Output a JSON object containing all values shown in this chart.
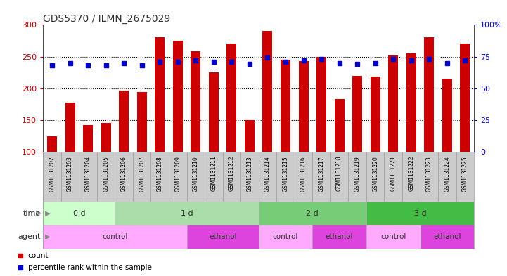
{
  "title": "GDS5370 / ILMN_2675029",
  "samples": [
    "GSM1131202",
    "GSM1131203",
    "GSM1131204",
    "GSM1131205",
    "GSM1131206",
    "GSM1131207",
    "GSM1131208",
    "GSM1131209",
    "GSM1131210",
    "GSM1131211",
    "GSM1131212",
    "GSM1131213",
    "GSM1131214",
    "GSM1131215",
    "GSM1131216",
    "GSM1131217",
    "GSM1131218",
    "GSM1131219",
    "GSM1131220",
    "GSM1131221",
    "GSM1131222",
    "GSM1131223",
    "GSM1131224",
    "GSM1131225"
  ],
  "counts": [
    125,
    178,
    142,
    145,
    196,
    194,
    280,
    275,
    258,
    225,
    270,
    150,
    290,
    245,
    243,
    250,
    183,
    220,
    218,
    252,
    255,
    280,
    215,
    270
  ],
  "percentiles": [
    68,
    70,
    68,
    68,
    70,
    68,
    71,
    71,
    72,
    71,
    71,
    69,
    74,
    71,
    72,
    73,
    70,
    69,
    70,
    73,
    72,
    73,
    70,
    72
  ],
  "bar_color": "#cc0000",
  "dot_color": "#0000cc",
  "ylim_left": [
    100,
    300
  ],
  "ylim_right": [
    0,
    100
  ],
  "yticks_left": [
    100,
    150,
    200,
    250,
    300
  ],
  "yticks_right": [
    0,
    25,
    50,
    75,
    100
  ],
  "title_color": "#333333",
  "title_fontsize": 10,
  "time_groups": [
    {
      "label": "0 d",
      "start": 0,
      "end": 4,
      "color": "#ccffcc"
    },
    {
      "label": "1 d",
      "start": 4,
      "end": 12,
      "color": "#aaddaa"
    },
    {
      "label": "2 d",
      "start": 12,
      "end": 18,
      "color": "#77cc77"
    },
    {
      "label": "3 d",
      "start": 18,
      "end": 24,
      "color": "#44bb44"
    }
  ],
  "agent_groups": [
    {
      "label": "control",
      "start": 0,
      "end": 8,
      "color": "#ffaaff"
    },
    {
      "label": "ethanol",
      "start": 8,
      "end": 12,
      "color": "#dd44dd"
    },
    {
      "label": "control",
      "start": 12,
      "end": 15,
      "color": "#ffaaff"
    },
    {
      "label": "ethanol",
      "start": 15,
      "end": 18,
      "color": "#dd44dd"
    },
    {
      "label": "control",
      "start": 18,
      "end": 21,
      "color": "#ffaaff"
    },
    {
      "label": "ethanol",
      "start": 21,
      "end": 24,
      "color": "#dd44dd"
    }
  ],
  "left_axis_color": "#cc0000",
  "right_axis_color": "#0000cc",
  "bg_color": "#ffffff",
  "grid_line_color": "#000000",
  "xticklabel_bg": "#cccccc",
  "row_label_color": "#555555",
  "time_row_label": "time",
  "agent_row_label": "agent",
  "legend_count_label": "count",
  "legend_pct_label": "percentile rank within the sample"
}
